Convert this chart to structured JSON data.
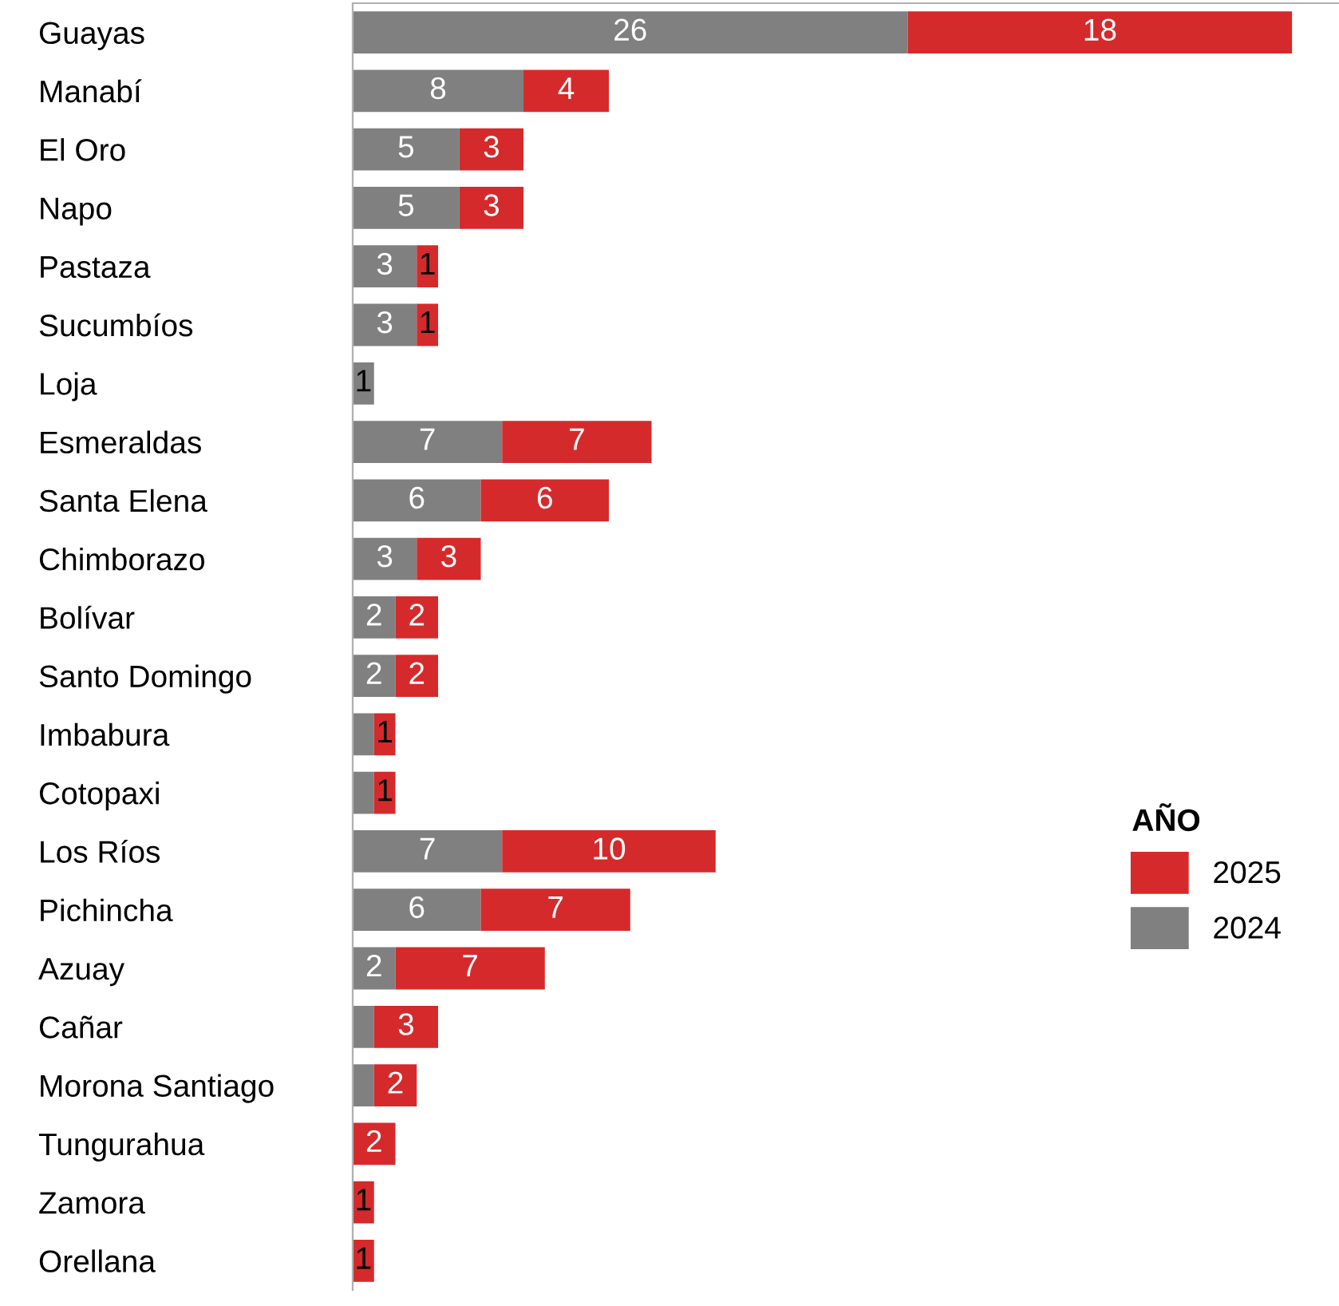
{
  "chart_data": {
    "type": "bar",
    "orientation": "horizontal",
    "stacked": true,
    "legend": "right",
    "legend_title": "AÑO",
    "categories": [
      "Guayas",
      "Manabí",
      "El Oro",
      "Napo",
      "Pastaza",
      "Sucumbíos",
      "Loja",
      "Esmeraldas",
      "Santa Elena",
      "Chimborazo",
      "Bolívar",
      "Santo Domingo",
      "Imbabura",
      "Cotopaxi",
      "Los Ríos",
      "Pichincha",
      "Azuay",
      "Cañar",
      "Morona Santiago",
      "Tungurahua",
      "Zamora",
      "Orellana"
    ],
    "series": [
      {
        "name": "2024",
        "color": "#808080",
        "values": [
          26,
          8,
          5,
          5,
          3,
          3,
          1,
          7,
          6,
          3,
          2,
          2,
          1,
          1,
          7,
          6,
          2,
          1,
          1,
          null,
          null,
          null
        ],
        "value_labels": [
          "26",
          "8",
          "5",
          "5",
          "3",
          "3",
          "1",
          "7",
          "6",
          "3",
          "2",
          "2",
          null,
          null,
          "7",
          "6",
          "2",
          null,
          null,
          null,
          null,
          null
        ]
      },
      {
        "name": "2025",
        "color": "#d52a2b",
        "values": [
          18,
          4,
          3,
          3,
          1,
          1,
          null,
          7,
          6,
          3,
          2,
          2,
          1,
          1,
          10,
          7,
          7,
          3,
          2,
          2,
          1,
          1
        ],
        "value_labels": [
          "18",
          "4",
          "3",
          "3",
          "1",
          "1",
          null,
          "7",
          "6",
          "3",
          "2",
          "2",
          "1",
          "1",
          "10",
          "7",
          "7",
          "3",
          "2",
          "2",
          "1",
          "1"
        ]
      }
    ]
  }
}
